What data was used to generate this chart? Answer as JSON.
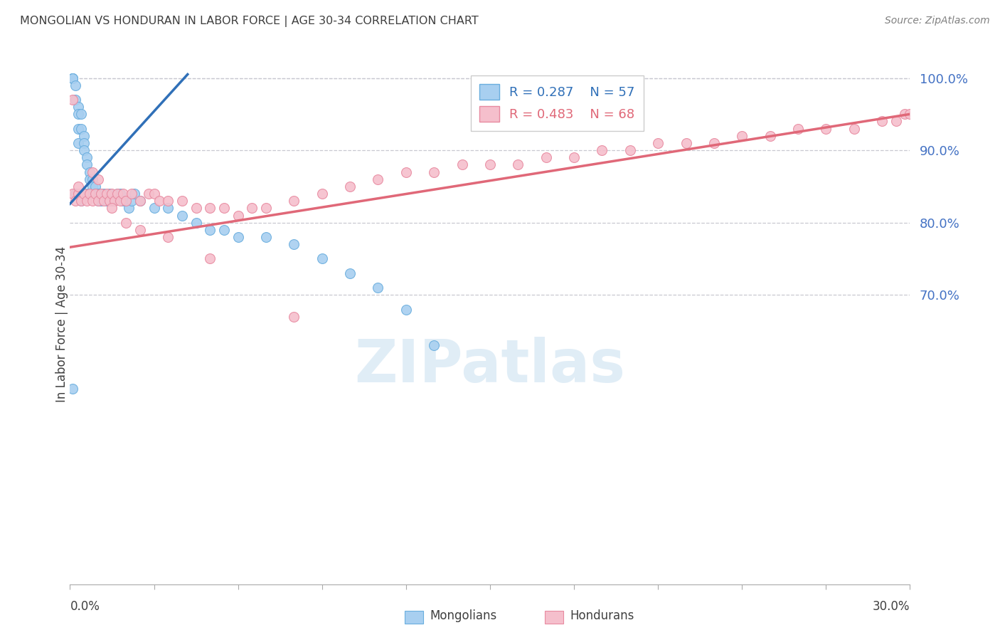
{
  "title": "MONGOLIAN VS HONDURAN IN LABOR FORCE | AGE 30-34 CORRELATION CHART",
  "source": "Source: ZipAtlas.com",
  "ylabel": "In Labor Force | Age 30-34",
  "watermark": "ZIPatlas",
  "mongolian_R": 0.287,
  "mongolian_N": 57,
  "honduran_R": 0.483,
  "honduran_N": 68,
  "xmin": 0.0,
  "xmax": 0.3,
  "ymin": 0.3,
  "ymax": 1.02,
  "yticks": [
    0.7,
    0.8,
    0.9,
    1.0
  ],
  "ytick_labels": [
    "70.0%",
    "80.0%",
    "90.0%",
    "100.0%"
  ],
  "mongolian_color": "#a8cff0",
  "mongolian_edge_color": "#6aaede",
  "honduran_color": "#f5bfcc",
  "honduran_edge_color": "#e88aa0",
  "mongolian_line_color": "#3070b8",
  "honduran_line_color": "#e06878",
  "axis_color": "#4472c4",
  "grid_color": "#c8c8d0",
  "title_color": "#404040",
  "source_color": "#808080",
  "mongolian_x": [
    0.001,
    0.001,
    0.001,
    0.002,
    0.002,
    0.003,
    0.003,
    0.003,
    0.003,
    0.004,
    0.004,
    0.005,
    0.005,
    0.005,
    0.006,
    0.006,
    0.007,
    0.007,
    0.008,
    0.008,
    0.009,
    0.009,
    0.01,
    0.01,
    0.011,
    0.011,
    0.012,
    0.013,
    0.014,
    0.015,
    0.016,
    0.017,
    0.018,
    0.019,
    0.02,
    0.021,
    0.022,
    0.023,
    0.025,
    0.03,
    0.035,
    0.04,
    0.045,
    0.05,
    0.055,
    0.06,
    0.07,
    0.08,
    0.09,
    0.1,
    0.11,
    0.12,
    0.13,
    0.001,
    0.002,
    0.004,
    0.006
  ],
  "mongolian_y": [
    1.0,
    1.0,
    1.0,
    0.99,
    0.97,
    0.96,
    0.95,
    0.93,
    0.91,
    0.95,
    0.93,
    0.92,
    0.91,
    0.9,
    0.89,
    0.88,
    0.87,
    0.86,
    0.86,
    0.85,
    0.85,
    0.84,
    0.84,
    0.83,
    0.84,
    0.83,
    0.84,
    0.83,
    0.84,
    0.83,
    0.83,
    0.84,
    0.84,
    0.83,
    0.83,
    0.82,
    0.83,
    0.84,
    0.83,
    0.82,
    0.82,
    0.81,
    0.8,
    0.79,
    0.79,
    0.78,
    0.78,
    0.77,
    0.75,
    0.73,
    0.71,
    0.68,
    0.63,
    0.57,
    0.84,
    0.83,
    0.84
  ],
  "honduran_x": [
    0.001,
    0.002,
    0.003,
    0.004,
    0.005,
    0.006,
    0.007,
    0.008,
    0.009,
    0.01,
    0.011,
    0.012,
    0.013,
    0.014,
    0.015,
    0.016,
    0.017,
    0.018,
    0.019,
    0.02,
    0.022,
    0.025,
    0.028,
    0.03,
    0.032,
    0.035,
    0.04,
    0.045,
    0.05,
    0.055,
    0.06,
    0.065,
    0.07,
    0.08,
    0.09,
    0.1,
    0.11,
    0.12,
    0.13,
    0.14,
    0.15,
    0.16,
    0.17,
    0.18,
    0.19,
    0.2,
    0.21,
    0.22,
    0.23,
    0.24,
    0.25,
    0.26,
    0.27,
    0.28,
    0.29,
    0.295,
    0.298,
    0.3,
    0.001,
    0.003,
    0.008,
    0.01,
    0.015,
    0.02,
    0.025,
    0.035,
    0.05,
    0.08
  ],
  "honduran_y": [
    0.84,
    0.83,
    0.84,
    0.83,
    0.84,
    0.83,
    0.84,
    0.83,
    0.84,
    0.83,
    0.84,
    0.83,
    0.84,
    0.83,
    0.84,
    0.83,
    0.84,
    0.83,
    0.84,
    0.83,
    0.84,
    0.83,
    0.84,
    0.84,
    0.83,
    0.83,
    0.83,
    0.82,
    0.82,
    0.82,
    0.81,
    0.82,
    0.82,
    0.83,
    0.84,
    0.85,
    0.86,
    0.87,
    0.87,
    0.88,
    0.88,
    0.88,
    0.89,
    0.89,
    0.9,
    0.9,
    0.91,
    0.91,
    0.91,
    0.92,
    0.92,
    0.93,
    0.93,
    0.93,
    0.94,
    0.94,
    0.95,
    0.95,
    0.97,
    0.85,
    0.87,
    0.86,
    0.82,
    0.8,
    0.79,
    0.78,
    0.75,
    0.67
  ],
  "mon_trend_x0": 0.0,
  "mon_trend_x1": 0.042,
  "mon_trend_y0": 0.826,
  "mon_trend_y1": 1.005,
  "hon_trend_x0": 0.0,
  "hon_trend_x1": 0.3,
  "hon_trend_y0": 0.766,
  "hon_trend_y1": 0.95
}
